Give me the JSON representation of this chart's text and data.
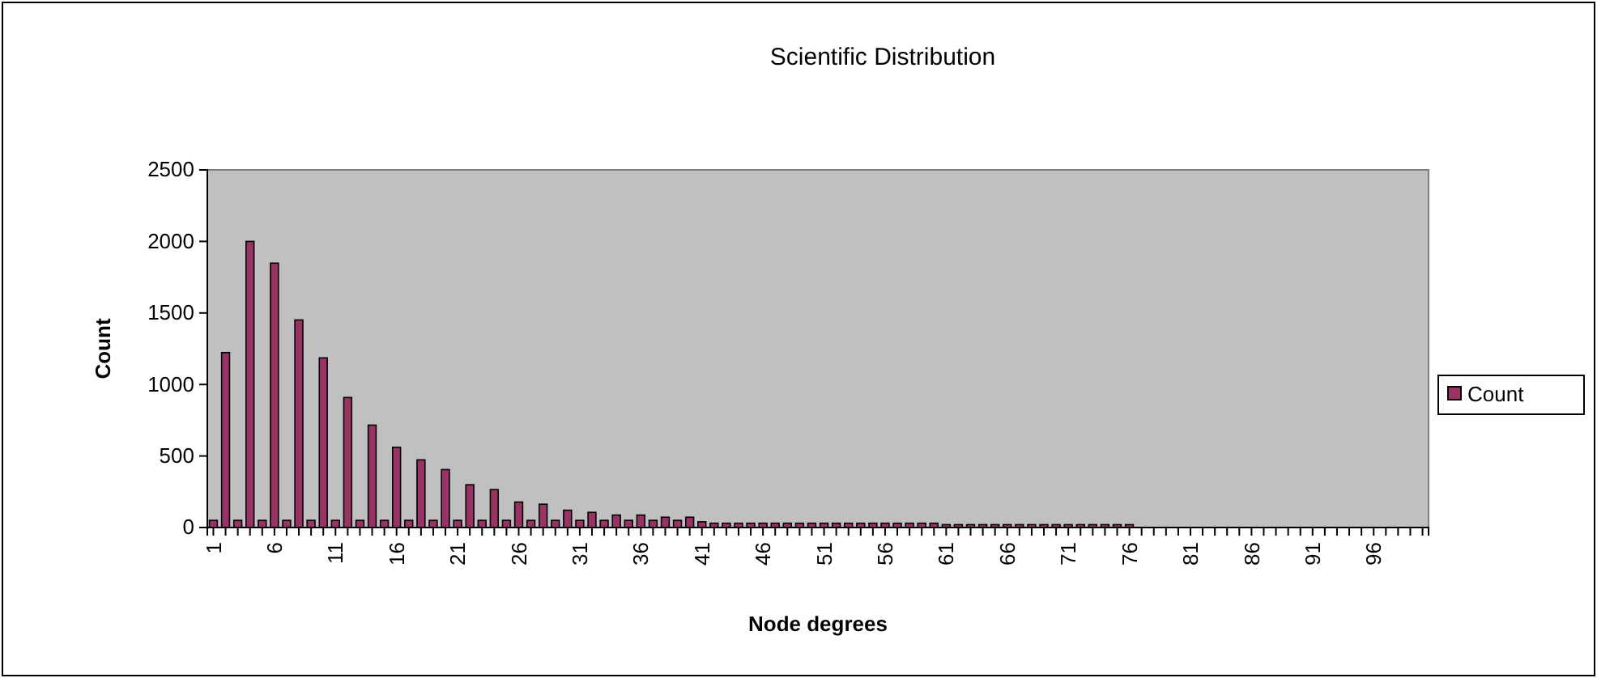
{
  "chart_data": {
    "type": "bar",
    "title": "Scientific Distribution",
    "xlabel": "Node degrees",
    "ylabel": "Count",
    "categories": [
      "1",
      null,
      null,
      null,
      null,
      "6",
      null,
      null,
      null,
      null,
      "11",
      null,
      null,
      null,
      null,
      "16",
      null,
      null,
      null,
      null,
      "21",
      null,
      null,
      null,
      null,
      "26",
      null,
      null,
      null,
      null,
      "31",
      null,
      null,
      null,
      null,
      "36",
      null,
      null,
      null,
      null,
      "41",
      null,
      null,
      null,
      null,
      "46",
      null,
      null,
      null,
      null,
      "51",
      null,
      null,
      null,
      null,
      "56",
      null,
      null,
      null,
      null,
      "61",
      null,
      null,
      null,
      null,
      "66",
      null,
      null,
      null,
      null,
      "71",
      null,
      null,
      null,
      null,
      "76",
      null,
      null,
      null,
      null,
      "81",
      null,
      null,
      null,
      null,
      "86",
      null,
      null,
      null,
      null,
      "91",
      null,
      null,
      null,
      null,
      "96",
      null,
      null,
      null,
      null
    ],
    "series": [
      {
        "name": "Count",
        "color": "#993366",
        "values": [
          50,
          1223,
          50,
          2000,
          50,
          1848,
          50,
          1451,
          50,
          1186,
          50,
          909,
          50,
          716,
          50,
          561,
          50,
          473,
          50,
          405,
          50,
          299,
          50,
          265,
          50,
          178,
          50,
          163,
          50,
          121,
          50,
          106,
          50,
          87,
          50,
          87,
          50,
          72,
          50,
          72,
          40,
          30,
          30,
          30,
          30,
          30,
          30,
          30,
          30,
          30,
          30,
          30,
          30,
          30,
          30,
          30,
          30,
          30,
          30,
          30,
          20,
          20,
          20,
          20,
          20,
          20,
          20,
          20,
          20,
          20,
          20,
          20,
          20,
          20,
          20,
          20,
          0,
          0,
          0,
          0,
          0,
          0,
          0,
          0,
          0,
          0,
          0,
          0,
          0,
          0,
          0,
          0,
          0,
          0,
          0,
          0,
          0,
          0,
          0,
          0
        ]
      }
    ],
    "ylim": [
      0,
      2500
    ],
    "yticks": [
      0,
      500,
      1000,
      1500,
      2000,
      2500
    ],
    "grid": false,
    "legend": "right"
  }
}
